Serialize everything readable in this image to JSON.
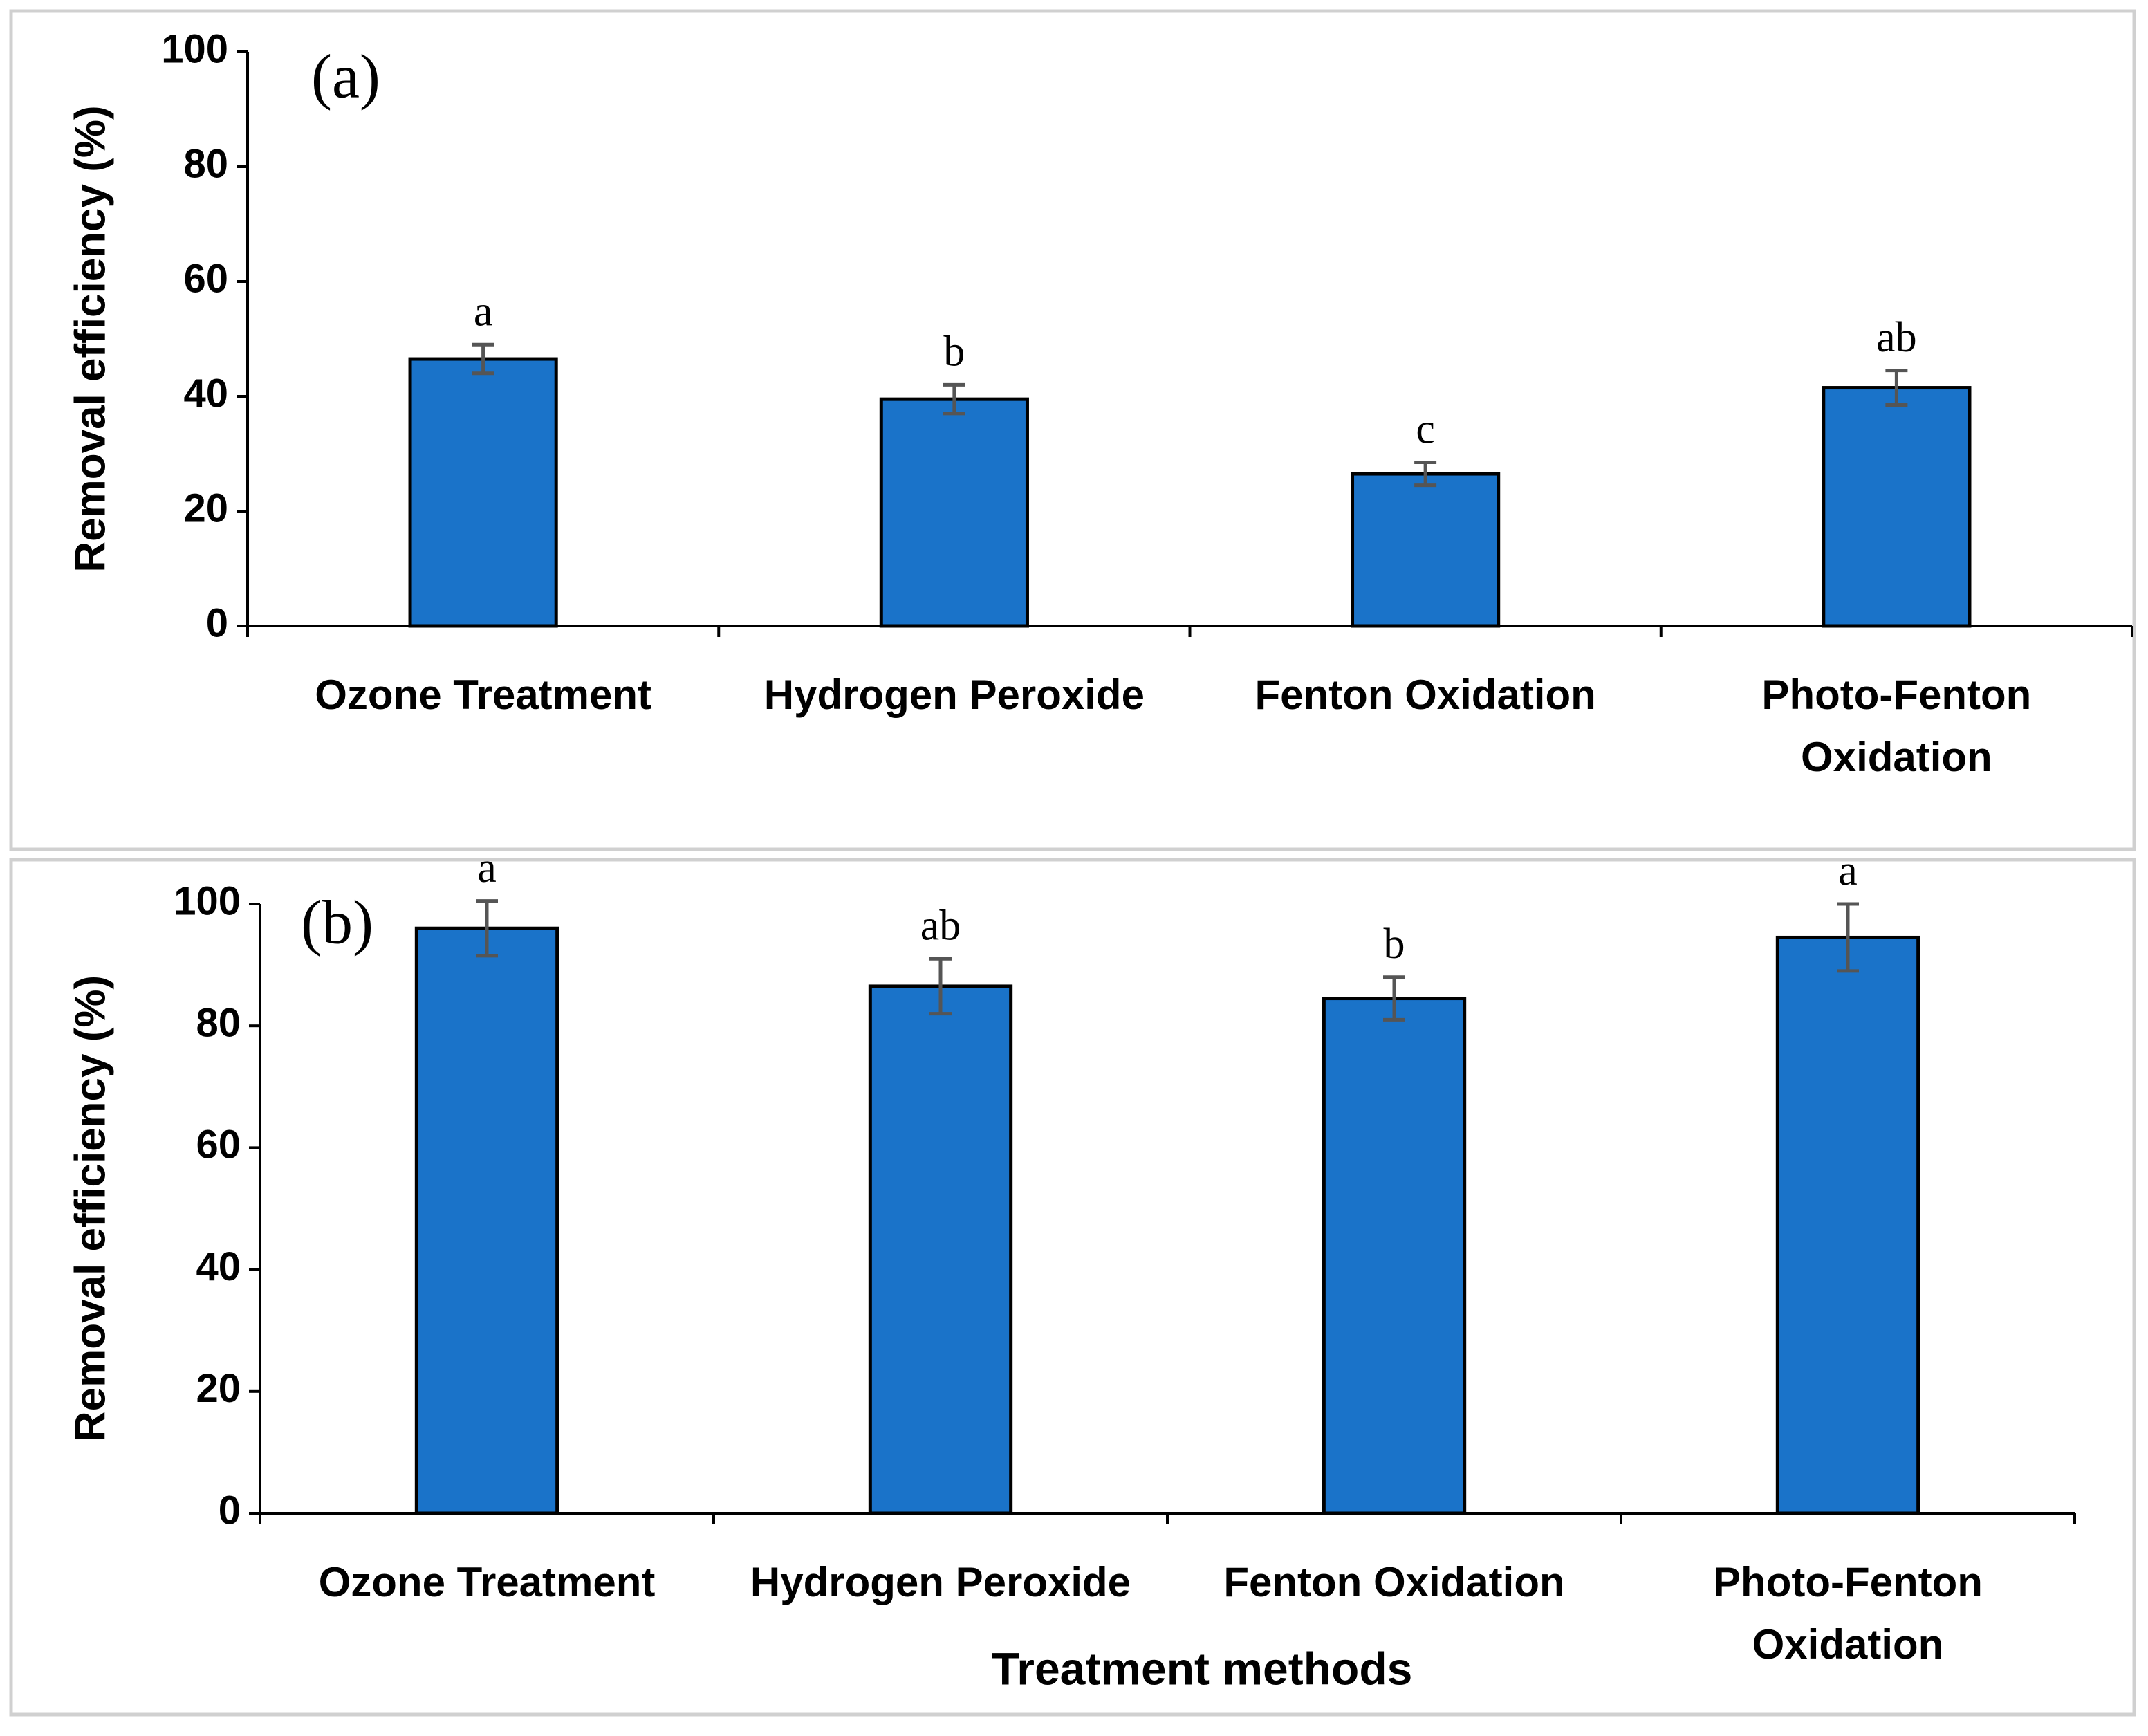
{
  "chart_data": [
    {
      "type": "bar",
      "panel_label": "(a)",
      "ylabel": "Removal efficiency (%)",
      "categories": [
        "Ozone Treatment",
        "Hydrogen Peroxide",
        "Fenton Oxidation",
        "Photo-Fenton Oxidation"
      ],
      "values": [
        46.5,
        39.5,
        26.5,
        41.5
      ],
      "errors": [
        2.5,
        2.5,
        2,
        3
      ],
      "letters": [
        "a",
        "b",
        "c",
        "ab"
      ],
      "color": "#1a73c9",
      "ylim": [
        0,
        100
      ],
      "yticks": [
        0,
        20,
        40,
        60,
        80,
        100
      ]
    },
    {
      "type": "bar",
      "panel_label": "(b)",
      "ylabel": "Removal efficiency (%)",
      "xlabel": "Treatment methods",
      "categories": [
        "Ozone Treatment",
        "Hydrogen Peroxide",
        "Fenton Oxidation",
        "Photo-Fenton Oxidation"
      ],
      "values": [
        96,
        86.5,
        84.5,
        94.5
      ],
      "errors": [
        4.5,
        4.5,
        3.5,
        5.5
      ],
      "letters": [
        "a",
        "ab",
        "b",
        "a"
      ],
      "color": "#1a73c9",
      "ylim": [
        0,
        100
      ],
      "yticks": [
        0,
        20,
        40,
        60,
        80,
        100
      ]
    }
  ]
}
